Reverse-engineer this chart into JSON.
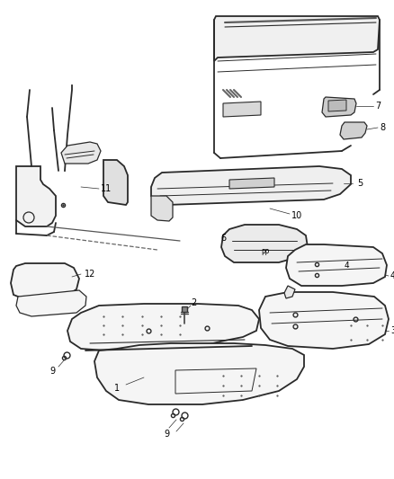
{
  "bg_color": "#ffffff",
  "line_color": "#2a2a2a",
  "label_color": "#000000",
  "fig_width": 4.38,
  "fig_height": 5.33,
  "dpi": 100,
  "font_size": 7.0
}
